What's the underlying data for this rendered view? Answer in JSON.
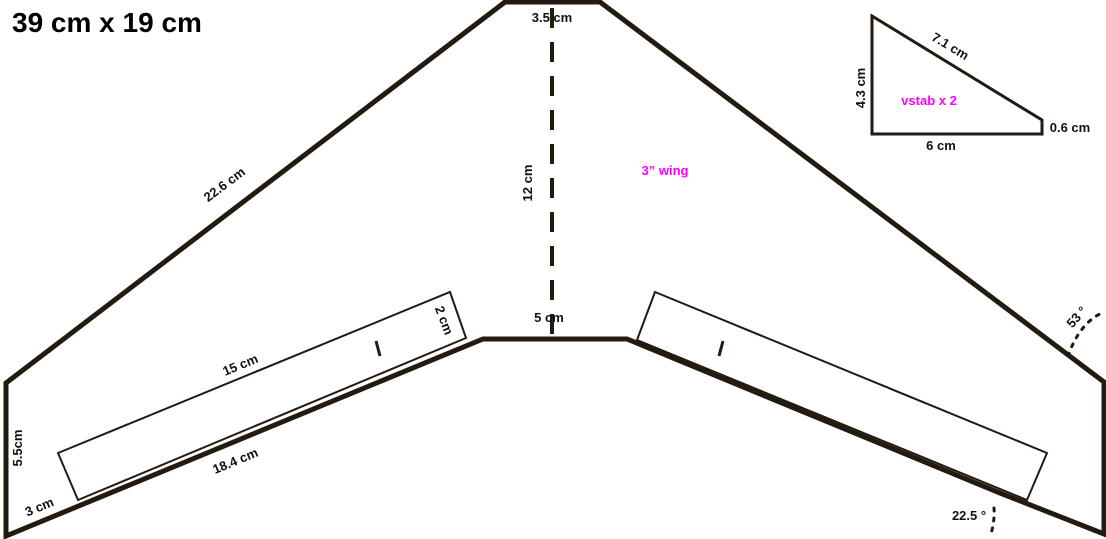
{
  "title": "39 cm x 19 cm",
  "colors": {
    "outline": "#231a10",
    "accent": "#ff00ff"
  },
  "wing": {
    "label": "3” wing",
    "dims": {
      "nose": "3.5 cm",
      "center_line": "12 cm",
      "leading_edge": "22.6 cm",
      "trailing_center": "5 cm",
      "trailing_edge": "18.4 cm",
      "tip": "5.5cm",
      "tip_base": "3 cm",
      "elevon_length": "15 cm",
      "elevon_width": "2 cm"
    },
    "angles": {
      "sweep": "53 °",
      "trailing": "22.5 °"
    }
  },
  "vstab": {
    "label": "vstab x 2",
    "hyp": "7.1 cm",
    "height": "4.3 cm",
    "base": "6 cm",
    "tip": "0.6 cm"
  }
}
